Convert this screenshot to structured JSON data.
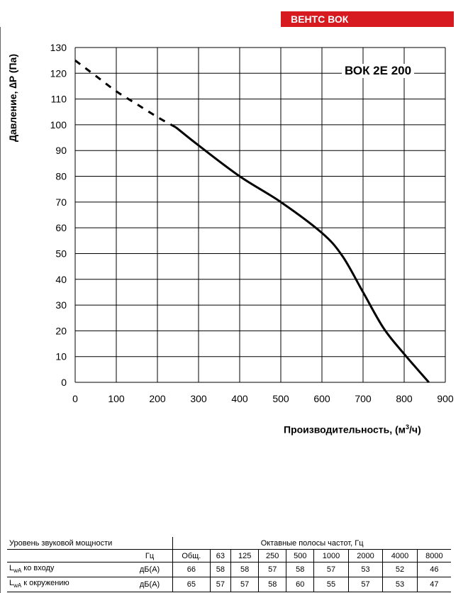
{
  "brand": "ВЕНТС ВОК",
  "chart_data": {
    "type": "line",
    "title": "ВОК 2Е 200",
    "xlabel": "Производительность, (м³/ч)",
    "xlabel_main": "Производительность, (м",
    "xlabel_sup": "3",
    "xlabel_end": "/ч)",
    "ylabel": "Давление, ∆P (Па)",
    "xlim": [
      0,
      900
    ],
    "ylim": [
      0,
      130
    ],
    "x_ticks": [
      0,
      100,
      200,
      300,
      400,
      500,
      600,
      700,
      800,
      900
    ],
    "y_ticks": [
      0,
      10,
      20,
      30,
      40,
      50,
      60,
      70,
      80,
      90,
      100,
      110,
      120,
      130
    ],
    "grid": true,
    "series": [
      {
        "style": "dashed",
        "x": [
          0,
          50,
          100,
          150,
          200,
          245
        ],
        "y": [
          125,
          119,
          113,
          108,
          103,
          99
        ]
      },
      {
        "style": "solid",
        "x": [
          245,
          300,
          400,
          500,
          600,
          650,
          700,
          750,
          800,
          860
        ],
        "y": [
          99,
          92,
          80,
          70,
          58,
          49,
          35,
          21,
          11,
          0
        ]
      }
    ]
  },
  "table": {
    "header_left": "Уровень звуковой мощности",
    "header_right": "Октавные полосы частот, Гц",
    "unit_hz": "Гц",
    "columns": [
      "Общ.",
      "63",
      "125",
      "250",
      "500",
      "1000",
      "2000",
      "4000",
      "8000"
    ],
    "rows": [
      {
        "label_main": "L",
        "label_sub": "wA",
        "label_rest": " ко входу",
        "unit": "дБ(А)",
        "values": [
          "66",
          "58",
          "58",
          "57",
          "58",
          "57",
          "53",
          "52",
          "46"
        ]
      },
      {
        "label_main": "L",
        "label_sub": "wA",
        "label_rest": " к окружению",
        "unit": "дБ(А)",
        "values": [
          "65",
          "57",
          "57",
          "58",
          "60",
          "55",
          "57",
          "53",
          "47"
        ]
      }
    ]
  }
}
